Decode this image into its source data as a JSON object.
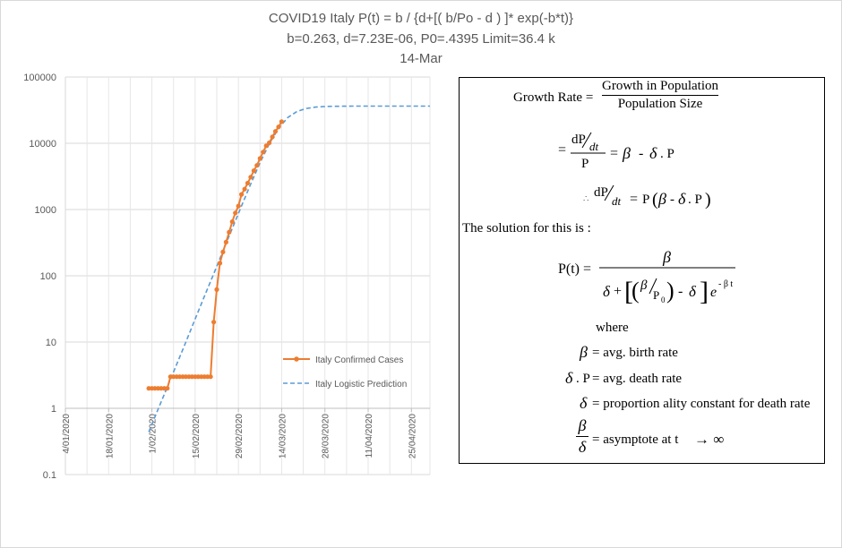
{
  "title_lines": [
    "COVID19 Italy P(t) = b / {d+[( b/Po - d ) ]* exp(-b*t)}",
    "b=0.263, d=7.23E-06, P0=.4395 Limit=36.4 k",
    "14-Mar"
  ],
  "colors": {
    "confirmed": "#ED7D31",
    "prediction": "#5B9BD5",
    "grid": "#d9d9d9",
    "text": "#595959"
  },
  "chart_data": {
    "type": "line",
    "x_axis": {
      "type": "date",
      "min": "2020-01-04",
      "max": "2020-05-01",
      "tick_labels": [
        "4/01/2020",
        "18/01/2020",
        "1/02/2020",
        "15/02/2020",
        "29/02/2020",
        "14/03/2020",
        "28/03/2020",
        "11/04/2020",
        "25/04/2020"
      ],
      "tick_dates": [
        "2020-01-04",
        "2020-01-18",
        "2020-02-01",
        "2020-02-15",
        "2020-02-29",
        "2020-03-14",
        "2020-03-28",
        "2020-04-11",
        "2020-04-25"
      ]
    },
    "y_axis": {
      "scale": "log",
      "min": 0.1,
      "max": 100000,
      "tick_labels": [
        "100000",
        "10000",
        "1000",
        "100",
        "10",
        "1",
        "0.1"
      ],
      "tick_values": [
        100000,
        10000,
        1000,
        100,
        10,
        1,
        0.1
      ]
    },
    "grid": true,
    "legend_position": "right",
    "series": [
      {
        "name": "Italy Confirmed Cases",
        "style": "line-markers",
        "x": [
          "2020-01-31",
          "2020-02-01",
          "2020-02-02",
          "2020-02-03",
          "2020-02-04",
          "2020-02-05",
          "2020-02-06",
          "2020-02-07",
          "2020-02-08",
          "2020-02-09",
          "2020-02-10",
          "2020-02-11",
          "2020-02-12",
          "2020-02-13",
          "2020-02-14",
          "2020-02-15",
          "2020-02-16",
          "2020-02-17",
          "2020-02-18",
          "2020-02-19",
          "2020-02-20",
          "2020-02-21",
          "2020-02-22",
          "2020-02-23",
          "2020-02-24",
          "2020-02-25",
          "2020-02-26",
          "2020-02-27",
          "2020-02-28",
          "2020-02-29",
          "2020-03-01",
          "2020-03-02",
          "2020-03-03",
          "2020-03-04",
          "2020-03-05",
          "2020-03-06",
          "2020-03-07",
          "2020-03-08",
          "2020-03-09",
          "2020-03-10",
          "2020-03-11",
          "2020-03-12",
          "2020-03-13",
          "2020-03-14"
        ],
        "y": [
          2,
          2,
          2,
          2,
          2,
          2,
          2,
          3,
          3,
          3,
          3,
          3,
          3,
          3,
          3,
          3,
          3,
          3,
          3,
          3,
          3,
          20,
          62,
          155,
          229,
          322,
          453,
          655,
          888,
          1128,
          1694,
          2036,
          2502,
          3089,
          3858,
          4636,
          5883,
          7375,
          9172,
          10149,
          12462,
          15113,
          17660,
          21157
        ]
      },
      {
        "name": "Italy Logistic Prediction",
        "style": "dashed",
        "x": [
          "2020-01-31",
          "2020-02-03",
          "2020-02-06",
          "2020-02-09",
          "2020-02-12",
          "2020-02-15",
          "2020-02-18",
          "2020-02-21",
          "2020-02-24",
          "2020-02-27",
          "2020-03-01",
          "2020-03-04",
          "2020-03-07",
          "2020-03-10",
          "2020-03-13",
          "2020-03-16",
          "2020-03-19",
          "2020-03-22",
          "2020-03-25",
          "2020-03-28",
          "2020-03-31",
          "2020-04-03",
          "2020-04-06",
          "2020-04-09",
          "2020-04-12",
          "2020-04-15",
          "2020-04-18",
          "2020-04-21",
          "2020-04-24",
          "2020-04-27",
          "2020-05-01"
        ],
        "y": [
          0.44,
          0.97,
          2.1,
          4.6,
          10,
          22.3,
          49,
          107,
          236,
          518,
          1130,
          2430,
          5070,
          9800,
          16800,
          24500,
          30300,
          33600,
          35200,
          35900,
          36200,
          36300,
          36400,
          36400,
          36400,
          36400,
          36400,
          36400,
          36400,
          36400,
          36400
        ]
      }
    ]
  },
  "formula": {
    "growth_rate_label": "Growth Rate =",
    "growth_num": "Growth in Population",
    "growth_den": "Population Size",
    "solution_text": "The solution for this is :",
    "where_text": "where",
    "def1": "= avg. birth rate",
    "def2": "= avg. death rate",
    "def3": "= proportion ality constant  for death rate",
    "def4": "= asymptote  at t"
  }
}
